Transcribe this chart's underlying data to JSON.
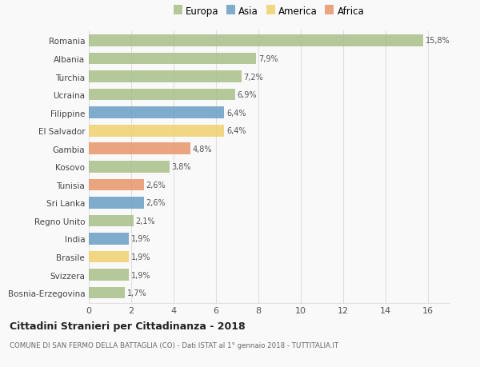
{
  "categories": [
    "Romania",
    "Albania",
    "Turchia",
    "Ucraina",
    "Filippine",
    "El Salvador",
    "Gambia",
    "Kosovo",
    "Tunisia",
    "Sri Lanka",
    "Regno Unito",
    "India",
    "Brasile",
    "Svizzera",
    "Bosnia-Erzegovina"
  ],
  "values": [
    15.8,
    7.9,
    7.2,
    6.9,
    6.4,
    6.4,
    4.8,
    3.8,
    2.6,
    2.6,
    2.1,
    1.9,
    1.9,
    1.9,
    1.7
  ],
  "labels": [
    "15,8%",
    "7,9%",
    "7,2%",
    "6,9%",
    "6,4%",
    "6,4%",
    "4,8%",
    "3,8%",
    "2,6%",
    "2,6%",
    "2,1%",
    "1,9%",
    "1,9%",
    "1,9%",
    "1,7%"
  ],
  "continents": [
    "Europa",
    "Europa",
    "Europa",
    "Europa",
    "Asia",
    "America",
    "Africa",
    "Europa",
    "Africa",
    "Asia",
    "Europa",
    "Asia",
    "America",
    "Europa",
    "Europa"
  ],
  "continent_colors": {
    "Europa": "#a8c08a",
    "Asia": "#6a9ec4",
    "America": "#f0d070",
    "Africa": "#e8956a"
  },
  "legend_order": [
    "Europa",
    "Asia",
    "America",
    "Africa"
  ],
  "title": "Cittadini Stranieri per Cittadinanza - 2018",
  "subtitle": "COMUNE DI SAN FERMO DELLA BATTAGLIA (CO) - Dati ISTAT al 1° gennaio 2018 - TUTTITALIA.IT",
  "xlim": [
    0,
    17
  ],
  "xticks": [
    0,
    2,
    4,
    6,
    8,
    10,
    12,
    14,
    16
  ],
  "background_color": "#f9f9f9",
  "grid_color": "#e0e0e0"
}
